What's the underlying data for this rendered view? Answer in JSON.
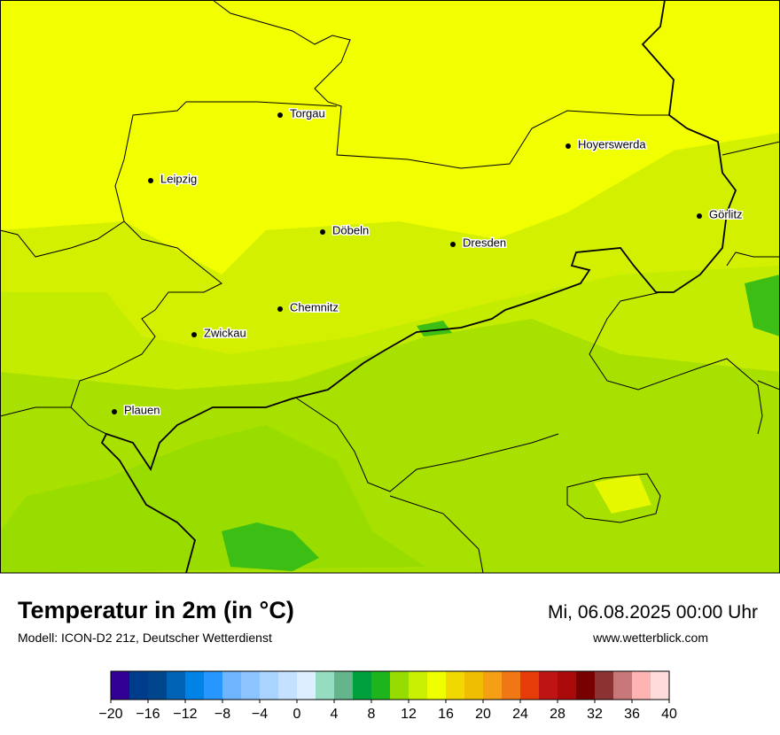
{
  "title": "Temperatur in 2m (in °C)",
  "subtitle": "Modell: ICON-D2 21z, Deutscher Wetterdienst",
  "date": "Mi, 06.08.2025 00:00 Uhr",
  "website": "www.wetterblick.com",
  "cities": [
    "Torgau",
    "Leipzig",
    "Hoyerswerda",
    "Görlitz",
    "Döbeln",
    "Dresden",
    "Chemnitz",
    "Zwickau",
    "Plauen"
  ],
  "colorbar": {
    "range": [
      -20,
      40
    ],
    "colors": [
      "#320095",
      "#003c8c",
      "#00468c",
      "#0062b4",
      "#0082e6",
      "#2896ff",
      "#6eb4ff",
      "#8cc4ff",
      "#a8d4ff",
      "#c4e2ff",
      "#dceeff",
      "#96dcc0",
      "#64b48c",
      "#00a03c",
      "#1eb41e",
      "#96dc00",
      "#c8f000",
      "#f0ff00",
      "#f0d800",
      "#f0be00",
      "#f5a014",
      "#f07814",
      "#e63c0a",
      "#be1414",
      "#aa0a0a",
      "#780000",
      "#8c3232",
      "#c87878",
      "#ffb4b4",
      "#ffdcdc"
    ],
    "ticks": [
      {
        "value": -20,
        "label": "−20"
      },
      {
        "value": -16,
        "label": "−16"
      },
      {
        "value": -12,
        "label": "−12"
      },
      {
        "value": -8,
        "label": "−8"
      },
      {
        "value": -4,
        "label": "−4"
      },
      0,
      4,
      8,
      12,
      16,
      20,
      24,
      28,
      32,
      36,
      40
    ]
  }
}
